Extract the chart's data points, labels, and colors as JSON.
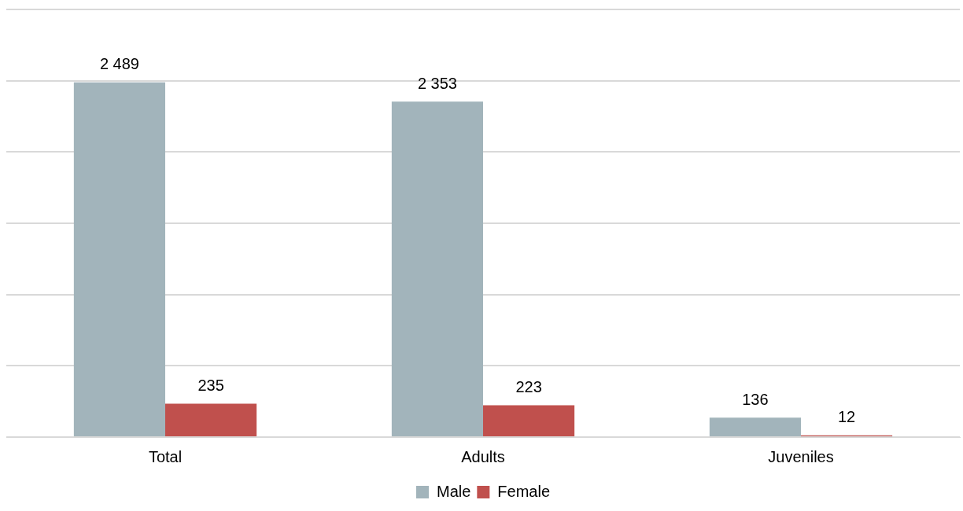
{
  "chart_data": {
    "type": "bar",
    "categories": [
      "Total",
      "Adults",
      "Juveniles"
    ],
    "series": [
      {
        "name": "Male",
        "color": "#a2b4bb",
        "values": [
          2489,
          2353,
          136
        ],
        "value_labels": [
          "2 489",
          "2 353",
          "136"
        ]
      },
      {
        "name": "Female",
        "color": "#c0504d",
        "values": [
          235,
          223,
          12
        ],
        "value_labels": [
          "235",
          "223",
          "12"
        ]
      }
    ],
    "ylim": [
      0,
      3000
    ],
    "yticks": [
      {
        "value": 0,
        "label": null
      },
      {
        "value": 500,
        "label": null
      },
      {
        "value": 1000,
        "label": null
      },
      {
        "value": 1500,
        "label": null
      },
      {
        "value": 2000,
        "label": null
      },
      {
        "value": 2500,
        "label": null
      },
      {
        "value": 3000,
        "label": null
      }
    ],
    "tick_labels": "x",
    "grid": "y",
    "legend": "bottom"
  }
}
